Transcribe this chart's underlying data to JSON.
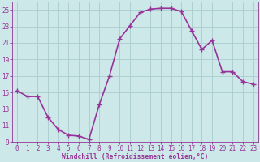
{
  "x": [
    0,
    1,
    2,
    3,
    4,
    5,
    6,
    7,
    8,
    9,
    10,
    11,
    12,
    13,
    14,
    15,
    16,
    17,
    18,
    19,
    20,
    21,
    22,
    23
  ],
  "y": [
    15.2,
    14.5,
    14.5,
    12.0,
    10.5,
    9.8,
    9.7,
    9.3,
    13.5,
    17.0,
    21.5,
    23.1,
    24.7,
    25.1,
    25.2,
    25.2,
    24.8,
    22.5,
    20.2,
    21.3,
    17.5,
    17.5,
    16.3,
    16.0
  ],
  "line_color": "#993399",
  "marker": "D",
  "marker_size": 2.2,
  "bg_color": "#cce8e8",
  "grid_color": "#aacccc",
  "xlabel": "Windchill (Refroidissement éolien,°C)",
  "xlabel_color": "#993399",
  "tick_color": "#993399",
  "ylim": [
    9,
    26
  ],
  "xlim": [
    -0.5,
    23.5
  ],
  "yticks": [
    9,
    11,
    13,
    15,
    17,
    19,
    21,
    23,
    25
  ],
  "xticks": [
    0,
    1,
    2,
    3,
    4,
    5,
    6,
    7,
    8,
    9,
    10,
    11,
    12,
    13,
    14,
    15,
    16,
    17,
    18,
    19,
    20,
    21,
    22,
    23
  ],
  "line_width": 1.2,
  "tick_fontsize": 5.5,
  "xlabel_fontsize": 5.8
}
